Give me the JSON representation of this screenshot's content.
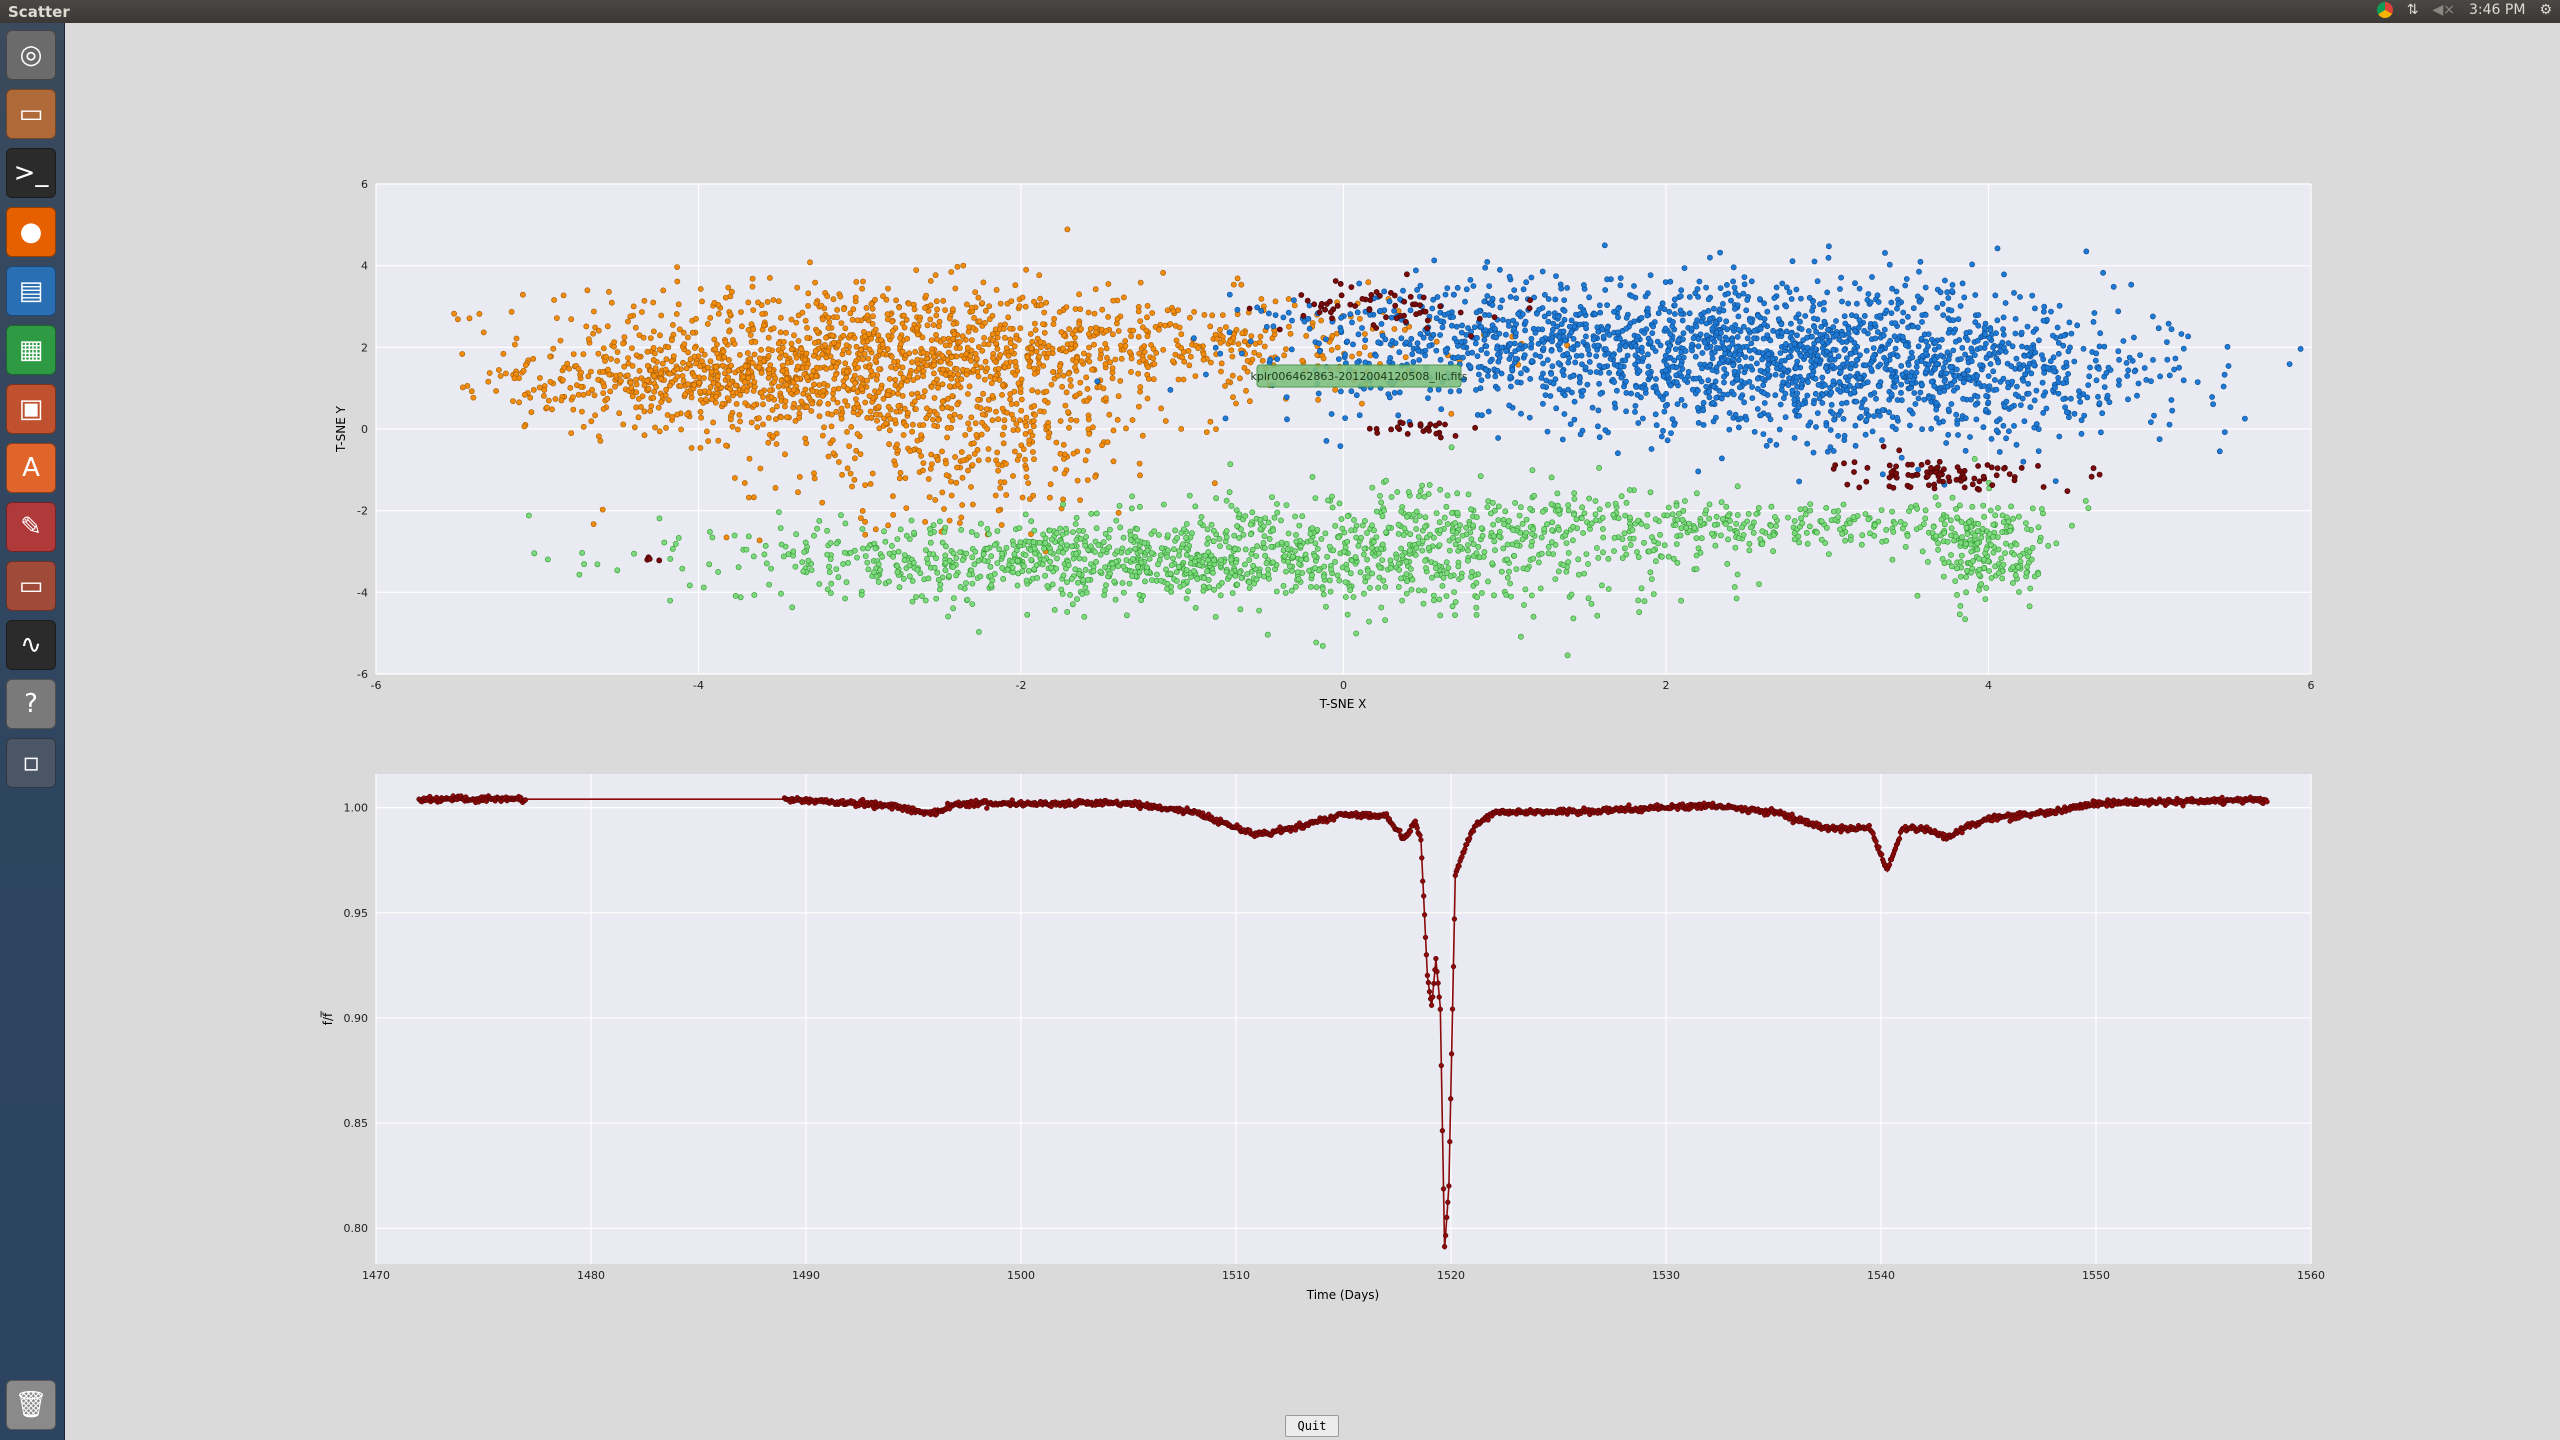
{
  "window": {
    "title": "Scatter"
  },
  "tray": {
    "clock": "3:46 PM"
  },
  "launcher": {
    "items": [
      {
        "icon": "dash-icon",
        "color": "#6b6b6b"
      },
      {
        "icon": "files-icon",
        "color": "#b06a3a"
      },
      {
        "icon": "terminal-icon",
        "color": "#2b2b2b"
      },
      {
        "icon": "firefox-icon",
        "color": "#e66000"
      },
      {
        "icon": "writer-icon",
        "color": "#2a6fb4"
      },
      {
        "icon": "calc-icon",
        "color": "#2e9a44"
      },
      {
        "icon": "impress-icon",
        "color": "#c0512f"
      },
      {
        "icon": "software-center-icon",
        "color": "#e0652a"
      },
      {
        "icon": "settings-icon",
        "color": "#b03a3a"
      },
      {
        "icon": "files-icon",
        "color": "#a04a3a"
      },
      {
        "icon": "system-monitor-icon",
        "color": "#2b2b2b"
      },
      {
        "icon": "help-icon",
        "color": "#7a7a7a"
      },
      {
        "icon": "workspace-icon",
        "color": "#4a5566"
      }
    ]
  },
  "scatter": {
    "xlabel": "T-SNE X",
    "ylabel": "T-SNE Y",
    "xticks": [
      "-6",
      "-4",
      "-2",
      "0",
      "2",
      "4",
      "6"
    ],
    "yticks": [
      "6",
      "4",
      "2",
      "0",
      "-2",
      "-4",
      "-6"
    ],
    "tooltip": "kplr006462863-2012004120508_llc.fits",
    "chart_data": {
      "type": "scatter",
      "xlim": [
        -6,
        6
      ],
      "ylim": [
        -6,
        6
      ],
      "grid": true,
      "series": [
        {
          "color": "#f28c0f",
          "stroke": "#a35a00",
          "clusters": [
            {
              "cx": -3.2,
              "cy": 1.8,
              "sx": 0.9,
              "sy": 0.9,
              "n": 900
            },
            {
              "cx": -2.4,
              "cy": 0.2,
              "sx": 0.7,
              "sy": 1.2,
              "n": 500
            },
            {
              "cx": -1.2,
              "cy": 2.1,
              "sx": 0.9,
              "sy": 0.6,
              "n": 400
            },
            {
              "cx": -4.0,
              "cy": 1.1,
              "sx": 0.6,
              "sy": 0.4,
              "n": 300
            }
          ]
        },
        {
          "color": "#1f7ad6",
          "stroke": "#0a4b8f",
          "clusters": [
            {
              "cx": 2.6,
              "cy": 1.8,
              "sx": 1.1,
              "sy": 0.9,
              "n": 1400
            },
            {
              "cx": 1.0,
              "cy": 2.2,
              "sx": 0.7,
              "sy": 0.7,
              "n": 400
            },
            {
              "cx": 3.8,
              "cy": 1.2,
              "sx": 0.7,
              "sy": 0.7,
              "n": 400
            }
          ]
        },
        {
          "color": "#7ed87e",
          "stroke": "#2d9a2d",
          "clusters": [
            {
              "cx": -1.5,
              "cy": -3.2,
              "sx": 1.1,
              "sy": 0.5,
              "n": 900
            },
            {
              "cx": 0.5,
              "cy": -2.8,
              "sx": 0.9,
              "sy": 0.8,
              "n": 500
            },
            {
              "cx": 2.5,
              "cy": -2.4,
              "sx": 0.9,
              "sy": 0.3,
              "n": 300
            },
            {
              "cx": 4.0,
              "cy": -3.0,
              "sx": 0.2,
              "sy": 0.6,
              "n": 200
            }
          ]
        },
        {
          "color": "#7a0b0b",
          "stroke": "#3a0000",
          "clusters": [
            {
              "cx": 0.2,
              "cy": 3.0,
              "sx": 0.3,
              "sy": 0.3,
              "n": 60
            },
            {
              "cx": 0.5,
              "cy": 0.0,
              "sx": 0.2,
              "sy": 0.1,
              "n": 25
            },
            {
              "cx": 3.7,
              "cy": -1.1,
              "sx": 0.3,
              "sy": 0.2,
              "n": 90
            },
            {
              "cx": -4.3,
              "cy": -3.2,
              "sx": 0.03,
              "sy": 0.03,
              "n": 4
            }
          ]
        }
      ]
    }
  },
  "lightcurve": {
    "xlabel": "Time (Days)",
    "ylabel": "f/f̅",
    "xticks": [
      "1470",
      "1480",
      "1490",
      "1500",
      "1510",
      "1520",
      "1530",
      "1540",
      "1550",
      "1560"
    ],
    "yticks": [
      "1.00",
      "0.95",
      "0.90",
      "0.85",
      "0.80"
    ],
    "chart_data": {
      "type": "line",
      "xlim": [
        1470,
        1560
      ],
      "ylim": [
        0.783,
        1.016
      ],
      "color": "#8b0a0a",
      "grid": true,
      "keypoints": [
        [
          1472,
          1.004
        ],
        [
          1477,
          1.004
        ],
        [
          1489,
          1.004
        ],
        [
          1494,
          1.001
        ],
        [
          1495.8,
          0.997
        ],
        [
          1497,
          1.002
        ],
        [
          1505,
          1.002
        ],
        [
          1508,
          0.998
        ],
        [
          1511,
          0.987
        ],
        [
          1513,
          0.991
        ],
        [
          1515,
          0.997
        ],
        [
          1517,
          0.996
        ],
        [
          1517.8,
          0.985
        ],
        [
          1518.3,
          0.993
        ],
        [
          1518.6,
          0.985
        ],
        [
          1518.9,
          0.92
        ],
        [
          1519.1,
          0.905
        ],
        [
          1519.3,
          0.928
        ],
        [
          1519.5,
          0.905
        ],
        [
          1519.7,
          0.79
        ],
        [
          1519.9,
          0.82
        ],
        [
          1520.2,
          0.968
        ],
        [
          1521,
          0.99
        ],
        [
          1522,
          0.998
        ],
        [
          1525,
          0.998
        ],
        [
          1526,
          0.998
        ],
        [
          1532,
          1.001
        ],
        [
          1535,
          0.998
        ],
        [
          1537.5,
          0.99
        ],
        [
          1539.5,
          0.99
        ],
        [
          1540.3,
          0.97
        ],
        [
          1541,
          0.99
        ],
        [
          1542,
          0.99
        ],
        [
          1543,
          0.986
        ],
        [
          1545,
          0.995
        ],
        [
          1548,
          0.998
        ],
        [
          1550,
          1.002
        ],
        [
          1558,
          1.004
        ]
      ]
    }
  },
  "quit_label": "Quit"
}
